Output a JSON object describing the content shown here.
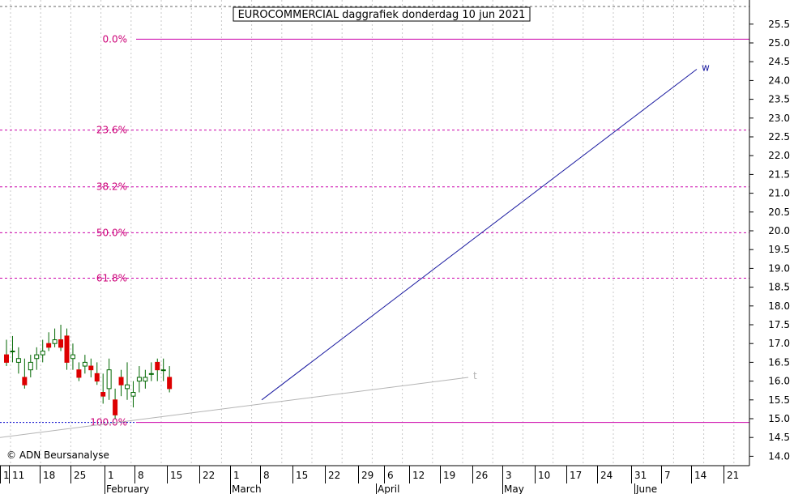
{
  "chart_data": {
    "type": "candlestick",
    "title": "EUROCOMMERCIAL daggrafiek donderdag 10 jun 2021",
    "watermark": "© ADN Beursanalyse",
    "ylim": [
      13.8,
      26.0
    ],
    "y_ticks": [
      14.0,
      14.5,
      15.0,
      15.5,
      16.0,
      16.5,
      17.0,
      17.5,
      18.0,
      18.5,
      19.0,
      19.5,
      20.0,
      20.5,
      21.0,
      21.5,
      22.0,
      22.5,
      23.0,
      23.5,
      24.0,
      24.5,
      25.0,
      25.5
    ],
    "x_day_labels": [
      "1",
      "11",
      "18",
      "25",
      "1",
      "8",
      "15",
      "22",
      "1",
      "8",
      "15",
      "22",
      "29",
      "6",
      "12",
      "19",
      "26",
      "3",
      "10",
      "17",
      "24",
      "31",
      "7",
      "14",
      "21"
    ],
    "x_month_labels": [
      "February",
      "March",
      "April",
      "May",
      "June"
    ],
    "fib_levels": [
      {
        "label": "0.0%",
        "value": 25.1
      },
      {
        "label": "23.6%",
        "value": 22.68
      },
      {
        "label": "38.2%",
        "value": 21.17
      },
      {
        "label": "50.0%",
        "value": 19.95
      },
      {
        "label": "61.8%",
        "value": 18.74
      },
      {
        "label": "100.0%",
        "value": 14.9
      }
    ],
    "trendlines": [
      {
        "name": "w",
        "color": "#1a1aa0",
        "from": [
          1,
          15.5
        ],
        "to": [
          36,
          24.3
        ]
      },
      {
        "name": "t",
        "color": "#b4b4b4",
        "from": [
          0,
          14.5
        ],
        "to": [
          24,
          16.1
        ]
      }
    ],
    "candles": [
      [
        16.7,
        17.1,
        16.4,
        16.5
      ],
      [
        16.8,
        17.2,
        16.5,
        16.8
      ],
      [
        16.5,
        16.9,
        16.2,
        16.6
      ],
      [
        16.1,
        16.6,
        15.8,
        15.9
      ],
      [
        16.3,
        16.7,
        16.1,
        16.5
      ],
      [
        16.6,
        16.9,
        16.3,
        16.7
      ],
      [
        16.7,
        17.1,
        16.5,
        16.8
      ],
      [
        17.0,
        17.3,
        16.8,
        16.9
      ],
      [
        17.0,
        17.4,
        16.9,
        17.1
      ],
      [
        17.1,
        17.5,
        16.8,
        16.9
      ],
      [
        17.2,
        17.4,
        16.3,
        16.5
      ],
      [
        16.6,
        17.0,
        16.3,
        16.7
      ],
      [
        16.3,
        16.5,
        16.0,
        16.1
      ],
      [
        16.4,
        16.7,
        16.2,
        16.5
      ],
      [
        16.4,
        16.6,
        16.1,
        16.3
      ],
      [
        16.2,
        16.5,
        15.9,
        16.0
      ],
      [
        15.7,
        16.2,
        15.4,
        15.6
      ],
      [
        15.8,
        16.6,
        15.5,
        16.3
      ],
      [
        15.5,
        15.8,
        15.0,
        15.1
      ],
      [
        16.1,
        16.3,
        15.6,
        15.9
      ],
      [
        15.8,
        16.5,
        15.5,
        15.9
      ],
      [
        15.6,
        16.0,
        15.3,
        15.7
      ],
      [
        16.0,
        16.4,
        15.7,
        16.1
      ],
      [
        16.0,
        16.3,
        15.8,
        16.1
      ],
      [
        16.2,
        16.5,
        16.0,
        16.2
      ],
      [
        16.5,
        16.6,
        16.0,
        16.3
      ],
      [
        16.3,
        16.6,
        16.0,
        16.3
      ],
      [
        16.1,
        16.4,
        15.7,
        15.8
      ]
    ]
  }
}
